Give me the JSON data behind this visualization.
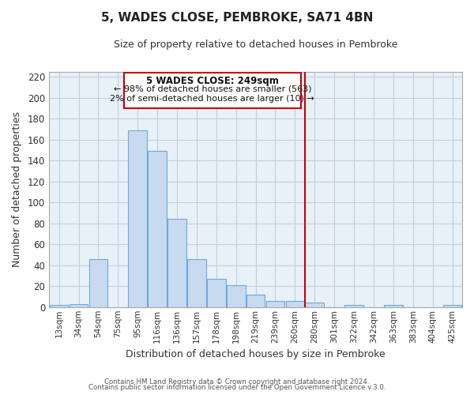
{
  "title": "5, WADES CLOSE, PEMBROKE, SA71 4BN",
  "subtitle": "Size of property relative to detached houses in Pembroke",
  "xlabel": "Distribution of detached houses by size in Pembroke",
  "ylabel": "Number of detached properties",
  "bar_labels": [
    "13sqm",
    "34sqm",
    "54sqm",
    "75sqm",
    "95sqm",
    "116sqm",
    "136sqm",
    "157sqm",
    "178sqm",
    "198sqm",
    "219sqm",
    "239sqm",
    "260sqm",
    "280sqm",
    "301sqm",
    "322sqm",
    "342sqm",
    "363sqm",
    "383sqm",
    "404sqm",
    "425sqm"
  ],
  "bar_values": [
    2,
    3,
    46,
    0,
    169,
    149,
    84,
    46,
    27,
    21,
    12,
    6,
    6,
    4,
    0,
    2,
    0,
    2,
    0,
    0,
    2
  ],
  "bar_color": "#c8daf0",
  "bar_edge_color": "#6aabda",
  "vline_x_index": 12.5,
  "vline_color": "#cc0000",
  "annotation_title": "5 WADES CLOSE: 249sqm",
  "annotation_line1": "← 98% of detached houses are smaller (563)",
  "annotation_line2": "2% of semi-detached houses are larger (10) →",
  "annotation_box_color": "#ffffff",
  "annotation_box_edge": "#cc0000",
  "ylim": [
    0,
    225
  ],
  "yticks": [
    0,
    20,
    40,
    60,
    80,
    100,
    120,
    140,
    160,
    180,
    200,
    220
  ],
  "footer1": "Contains HM Land Registry data © Crown copyright and database right 2024.",
  "footer2": "Contains public sector information licensed under the Open Government Licence v.3.0.",
  "bg_color": "#ffffff",
  "plot_bg_color": "#e8f0f8",
  "grid_color": "#c0cfe0"
}
